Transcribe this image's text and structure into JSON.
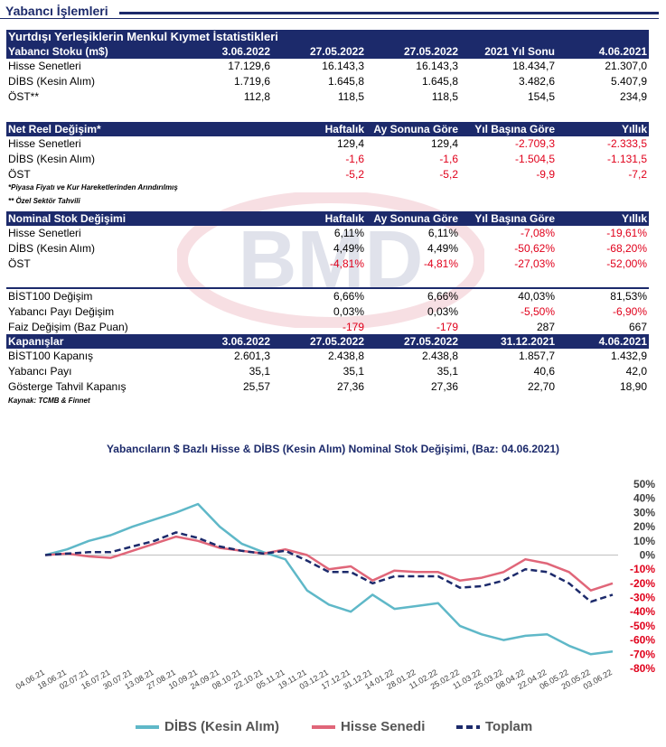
{
  "page": {
    "title": "Yabancı İşlemleri"
  },
  "stats": {
    "title": "Yurtdışı Yerleşiklerin Menkul Kıymet İstatistikleri",
    "stok": {
      "header": [
        "Yabancı Stoku (m$)",
        "3.06.2022",
        "27.05.2022",
        "27.05.2022",
        "2021 Yıl Sonu",
        "4.06.2021"
      ],
      "rows": [
        [
          "Hisse Senetleri",
          "17.129,6",
          "16.143,3",
          "16.143,3",
          "18.434,7",
          "21.307,0"
        ],
        [
          "DİBS (Kesin Alım)",
          "1.719,6",
          "1.645,8",
          "1.645,8",
          "3.482,6",
          "5.407,9"
        ],
        [
          "ÖST**",
          "112,8",
          "118,5",
          "118,5",
          "154,5",
          "234,9"
        ]
      ]
    },
    "reel": {
      "header": [
        "Net Reel Değişim*",
        "Haftalık",
        "Ay Sonuna Göre",
        "Yıl Başına Göre",
        "Yıllık"
      ],
      "rows": [
        [
          "Hisse Senetleri",
          "129,4",
          "129,4",
          "-2.709,3",
          "-2.333,5"
        ],
        [
          "DİBS (Kesin Alım)",
          "-1,6",
          "-1,6",
          "-1.504,5",
          "-1.131,5"
        ],
        [
          "ÖST",
          "-5,2",
          "-5,2",
          "-9,9",
          "-7,2"
        ]
      ],
      "note1": "*Piyasa Fiyatı ve Kur Hareketlerinden Arındırılmış",
      "note2": "** Özel Sektör Tahvili"
    },
    "nominal": {
      "header": [
        "Nominal Stok Değişimi",
        "Haftalık",
        "Ay Sonuna Göre",
        "Yıl Başına Göre",
        "Yıllık"
      ],
      "rows": [
        [
          "Hisse Senetleri",
          "6,11%",
          "6,11%",
          "-7,08%",
          "-19,61%"
        ],
        [
          "DİBS (Kesin Alım)",
          "4,49%",
          "4,49%",
          "-50,62%",
          "-68,20%"
        ],
        [
          "ÖST",
          "-4,81%",
          "-4,81%",
          "-27,03%",
          "-52,00%"
        ]
      ]
    },
    "bist": {
      "rows": [
        [
          "BİST100 Değişim",
          "6,66%",
          "6,66%",
          "40,03%",
          "81,53%"
        ],
        [
          "Yabancı Payı Değişim",
          "0,03%",
          "0,03%",
          "-5,50%",
          "-6,90%"
        ],
        [
          "Faiz Değişim (Baz Puan)",
          "-179",
          "-179",
          "287",
          "667"
        ]
      ]
    },
    "kapanis": {
      "header": [
        "Kapanışlar",
        "3.06.2022",
        "27.05.2022",
        "27.05.2022",
        "31.12.2021",
        "4.06.2021"
      ],
      "rows": [
        [
          "BİST100 Kapanış",
          "2.601,3",
          "2.438,8",
          "2.438,8",
          "1.857,7",
          "1.432,9"
        ],
        [
          "Yabancı Payı",
          "35,1",
          "35,1",
          "35,1",
          "40,6",
          "42,0"
        ],
        [
          "Gösterge Tahvil Kapanış",
          "25,57",
          "27,36",
          "27,36",
          "22,70",
          "18,90"
        ]
      ],
      "source": "Kaynak: TCMB & Finnet"
    }
  },
  "chart_data": {
    "type": "line",
    "title": "Yabancıların $ Bazlı Hisse & DİBS (Kesin Alım) Nominal Stok Değişimi, (Baz: 04.06.2021)",
    "x": [
      "04.06.21",
      "18.06.21",
      "02.07.21",
      "16.07.21",
      "30.07.21",
      "13.08.21",
      "27.08.21",
      "10.09.21",
      "24.09.21",
      "08.10.21",
      "22.10.21",
      "05.11.21",
      "19.11.21",
      "03.12.21",
      "17.12.21",
      "31.12.21",
      "14.01.22",
      "28.01.22",
      "11.02.22",
      "25.02.22",
      "11.03.22",
      "25.03.22",
      "08.04.22",
      "22.04.22",
      "06.05.22",
      "20.05.22",
      "03.06.22"
    ],
    "y_ticks": [
      "50%",
      "40%",
      "30%",
      "20%",
      "10%",
      "0%",
      "-10%",
      "-20%",
      "-30%",
      "-40%",
      "-50%",
      "-60%",
      "-70%",
      "-80%"
    ],
    "ylim": [
      -80,
      50
    ],
    "axis_label_colors": {
      "positive": "#404040",
      "negative": "#e0001b"
    },
    "series": [
      {
        "name": "DİBS (Kesin Alım)",
        "color": "#5fb8c8",
        "dash": "solid",
        "values": [
          0,
          4,
          10,
          14,
          20,
          25,
          30,
          36,
          20,
          8,
          2,
          -3,
          -25,
          -35,
          -40,
          -28,
          -38,
          -36,
          -34,
          -50,
          -56,
          -60,
          -57,
          -56,
          -64,
          -70,
          -68
        ]
      },
      {
        "name": "Hisse Senedi",
        "color": "#e06679",
        "dash": "solid",
        "values": [
          0,
          1,
          -1,
          -2,
          3,
          8,
          13,
          10,
          5,
          3,
          1,
          4,
          0,
          -10,
          -8,
          -18,
          -11,
          -12,
          -12,
          -18,
          -16,
          -12,
          -3,
          -6,
          -12,
          -25,
          -20
        ]
      },
      {
        "name": "Toplam",
        "color": "#1c2a6b",
        "dash": "dashed",
        "values": [
          0,
          1,
          2,
          2,
          6,
          10,
          16,
          12,
          6,
          3,
          1,
          3,
          -4,
          -12,
          -12,
          -20,
          -15,
          -15,
          -15,
          -23,
          -22,
          -18,
          -10,
          -12,
          -20,
          -33,
          -28
        ]
      }
    ],
    "grid": false,
    "legend_position": "bottom"
  }
}
